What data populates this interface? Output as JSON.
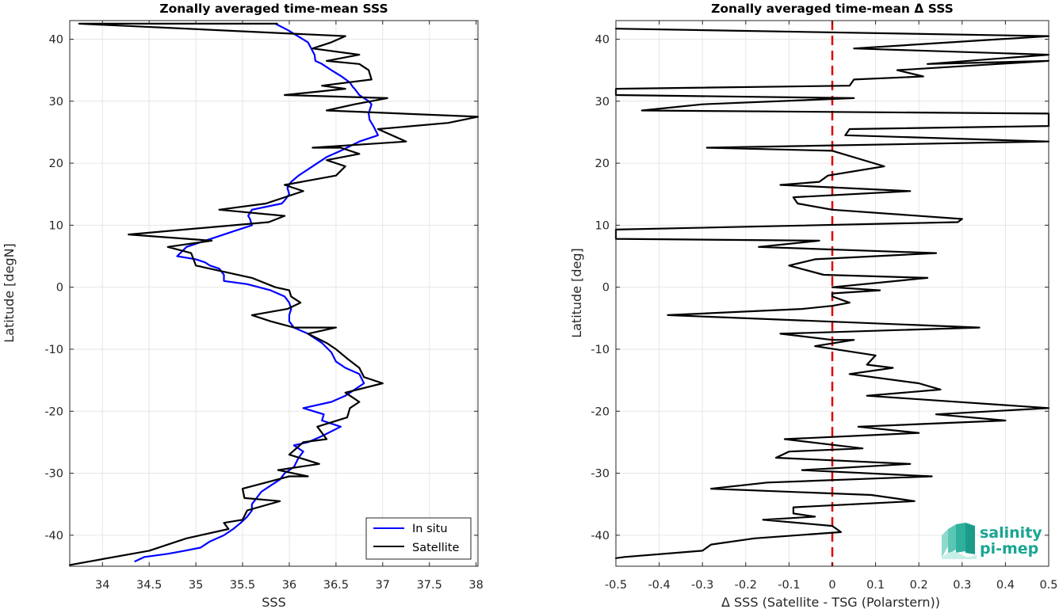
{
  "chart_data": [
    {
      "type": "line",
      "title": "Zonally averaged time-mean SSS",
      "xlabel": "SSS",
      "ylabel": "Latitude [degN]",
      "xlim": [
        33.65,
        38.02
      ],
      "ylim": [
        -45,
        43
      ],
      "xticks": [
        34,
        34.5,
        35,
        35.5,
        36,
        36.5,
        37,
        37.5,
        38
      ],
      "xtick_labels": [
        "34",
        "34.5",
        "35",
        "35.5",
        "36",
        "36.5",
        "37",
        "37.5",
        "38"
      ],
      "yticks": [
        -40,
        -30,
        -20,
        -10,
        0,
        10,
        20,
        30,
        40
      ],
      "ytick_labels": [
        "-40",
        "-30",
        "-20",
        "-10",
        "0",
        "10",
        "20",
        "30",
        "40"
      ],
      "grid": true,
      "legend": "bottom-right",
      "series": [
        {
          "name": "In situ",
          "color": "#0000ff",
          "points": [
            [
              35.85,
              42.5
            ],
            [
              35.98,
              41.5
            ],
            [
              36.2,
              39.5
            ],
            [
              36.27,
              37.5
            ],
            [
              36.28,
              36.5
            ],
            [
              36.35,
              36.0
            ],
            [
              36.45,
              35.0
            ],
            [
              36.56,
              34.0
            ],
            [
              36.65,
              33.0
            ],
            [
              36.68,
              32.3
            ],
            [
              36.7,
              32.0
            ],
            [
              36.75,
              31.0
            ],
            [
              36.85,
              30.0
            ],
            [
              36.88,
              29.5
            ],
            [
              36.85,
              28.0
            ],
            [
              36.86,
              27.0
            ],
            [
              36.9,
              26.0
            ],
            [
              36.95,
              24.5
            ],
            [
              36.75,
              23.5
            ],
            [
              36.55,
              22.0
            ],
            [
              36.4,
              21.0
            ],
            [
              36.3,
              20.0
            ],
            [
              36.2,
              19.0
            ],
            [
              36.1,
              18.0
            ],
            [
              36.02,
              17.0
            ],
            [
              35.98,
              16.0
            ],
            [
              36.0,
              15.0
            ],
            [
              35.95,
              14.0
            ],
            [
              35.92,
              13.5
            ],
            [
              35.6,
              12.5
            ],
            [
              35.58,
              12.0
            ],
            [
              35.56,
              11.5
            ],
            [
              35.58,
              11.0
            ],
            [
              35.6,
              10.0
            ],
            [
              35.4,
              9.0
            ],
            [
              35.1,
              7.5
            ],
            [
              34.9,
              6.5
            ],
            [
              34.8,
              5.0
            ],
            [
              35.0,
              4.5
            ],
            [
              35.1,
              4.0
            ],
            [
              35.15,
              3.5
            ],
            [
              35.25,
              3.0
            ],
            [
              35.3,
              2.0
            ],
            [
              35.3,
              1.0
            ],
            [
              35.55,
              0.5
            ],
            [
              35.8,
              -0.5
            ],
            [
              35.95,
              -1.5
            ],
            [
              36.0,
              -2.5
            ],
            [
              36.02,
              -3.5
            ],
            [
              36.0,
              -4.5
            ],
            [
              36.0,
              -5.5
            ],
            [
              36.05,
              -6.5
            ],
            [
              36.2,
              -7.5
            ],
            [
              36.35,
              -9.0
            ],
            [
              36.45,
              -10.5
            ],
            [
              36.5,
              -12.0
            ],
            [
              36.6,
              -13.0
            ],
            [
              36.75,
              -14.0
            ],
            [
              36.8,
              -15.5
            ],
            [
              36.7,
              -16.5
            ],
            [
              36.6,
              -17.5
            ],
            [
              36.45,
              -18.5
            ],
            [
              36.15,
              -19.5
            ],
            [
              36.37,
              -20.5
            ],
            [
              36.35,
              -21.5
            ],
            [
              36.55,
              -22.5
            ],
            [
              36.35,
              -24.0
            ],
            [
              36.2,
              -25.0
            ],
            [
              36.05,
              -25.5
            ],
            [
              36.15,
              -26.5
            ],
            [
              36.1,
              -27.5
            ],
            [
              36.05,
              -29.0
            ],
            [
              35.95,
              -30.0
            ],
            [
              35.9,
              -31.0
            ],
            [
              35.8,
              -32.0
            ],
            [
              35.7,
              -33.0
            ],
            [
              35.65,
              -34.0
            ],
            [
              35.6,
              -35.0
            ],
            [
              35.6,
              -36.0
            ],
            [
              35.55,
              -37.0
            ],
            [
              35.48,
              -38.0
            ],
            [
              35.4,
              -39.0
            ],
            [
              35.3,
              -40.0
            ],
            [
              35.15,
              -41.0
            ],
            [
              35.05,
              -42.0
            ],
            [
              34.88,
              -42.5
            ],
            [
              34.7,
              -43.0
            ],
            [
              34.45,
              -43.5
            ],
            [
              34.35,
              -44.2
            ]
          ]
        },
        {
          "name": "Satellite",
          "color": "#000000",
          "points": [
            [
              35.87,
              42.5
            ],
            [
              33.75,
              42.5
            ],
            [
              36.6,
              40.5
            ],
            [
              36.45,
              39.5
            ],
            [
              36.25,
              38.5
            ],
            [
              36.75,
              37.5
            ],
            [
              36.4,
              36.5
            ],
            [
              36.75,
              36.0
            ],
            [
              36.85,
              35.0
            ],
            [
              36.88,
              33.5
            ],
            [
              36.35,
              32.5
            ],
            [
              36.6,
              32.0
            ],
            [
              35.95,
              31.0
            ],
            [
              37.05,
              30.5
            ],
            [
              36.7,
              29.5
            ],
            [
              36.4,
              28.5
            ],
            [
              38.02,
              27.5
            ],
            [
              37.7,
              26.5
            ],
            [
              36.95,
              25.5
            ],
            [
              37.25,
              23.5
            ],
            [
              36.25,
              22.5
            ],
            [
              36.55,
              22.5
            ],
            [
              36.75,
              21.5
            ],
            [
              36.4,
              20.5
            ],
            [
              36.6,
              19.5
            ],
            [
              36.5,
              18.0
            ],
            [
              35.95,
              16.5
            ],
            [
              36.15,
              15.5
            ],
            [
              35.75,
              13.5
            ],
            [
              35.25,
              12.5
            ],
            [
              35.95,
              11.5
            ],
            [
              35.78,
              10.5
            ],
            [
              34.28,
              8.5
            ],
            [
              35.17,
              7.5
            ],
            [
              34.7,
              6.5
            ],
            [
              34.95,
              5.5
            ],
            [
              35.0,
              3.5
            ],
            [
              35.6,
              1.5
            ],
            [
              35.85,
              0.0
            ],
            [
              36.0,
              -0.5
            ],
            [
              36.02,
              -1.5
            ],
            [
              36.12,
              -2.5
            ],
            [
              35.98,
              -3.5
            ],
            [
              35.6,
              -4.5
            ],
            [
              35.8,
              -5.5
            ],
            [
              36.05,
              -6.5
            ],
            [
              36.5,
              -6.5
            ],
            [
              36.2,
              -7.5
            ],
            [
              36.4,
              -9.0
            ],
            [
              36.5,
              -10.0
            ],
            [
              36.62,
              -11.5
            ],
            [
              36.75,
              -13.0
            ],
            [
              36.8,
              -14.5
            ],
            [
              37.0,
              -15.5
            ],
            [
              36.6,
              -17.0
            ],
            [
              36.75,
              -18.5
            ],
            [
              36.65,
              -19.5
            ],
            [
              36.62,
              -21.0
            ],
            [
              36.3,
              -22.5
            ],
            [
              36.4,
              -24.5
            ],
            [
              36.15,
              -25.0
            ],
            [
              36.0,
              -27.0
            ],
            [
              36.32,
              -28.5
            ],
            [
              35.88,
              -29.5
            ],
            [
              36.2,
              -30.5
            ],
            [
              36.0,
              -30.5
            ],
            [
              35.75,
              -31.5
            ],
            [
              35.5,
              -32.5
            ],
            [
              35.52,
              -34.0
            ],
            [
              35.9,
              -34.5
            ],
            [
              35.55,
              -36.0
            ],
            [
              35.5,
              -37.5
            ],
            [
              35.3,
              -38.0
            ],
            [
              35.35,
              -39.0
            ],
            [
              34.9,
              -40.5
            ],
            [
              34.8,
              -41.0
            ],
            [
              34.5,
              -42.5
            ],
            [
              33.65,
              -44.8
            ]
          ]
        }
      ]
    },
    {
      "type": "line",
      "title": "Zonally averaged time-mean Δ SSS",
      "xlabel": "Δ SSS (Satellite - TSG (Polarstern))",
      "ylabel": "Latitude [deg]",
      "xlim": [
        -0.5,
        0.5
      ],
      "ylim": [
        -45,
        43
      ],
      "xticks": [
        -0.5,
        -0.4,
        -0.3,
        -0.2,
        -0.1,
        0,
        0.1,
        0.2,
        0.3,
        0.4,
        0.5
      ],
      "xtick_labels": [
        "-0.5",
        "-0.4",
        "-0.3",
        "-0.2",
        "-0.1",
        "0",
        "0.1",
        "0.2",
        "0.3",
        "0.4",
        "0.5"
      ],
      "yticks": [
        -40,
        -30,
        -20,
        -10,
        0,
        10,
        20,
        30,
        40
      ],
      "ytick_labels": [
        "-40",
        "-30",
        "-20",
        "-10",
        "0",
        "10",
        "20",
        "30",
        "40"
      ],
      "grid": true,
      "reference_line": {
        "x": 0,
        "color": "#e00000",
        "style": "dashed"
      },
      "series": [
        {
          "color": "#000000",
          "points": [
            [
              -0.5,
              41.7
            ],
            [
              0.5,
              40.5
            ],
            [
              0.05,
              38.5
            ],
            [
              0.5,
              37.5
            ],
            [
              0.22,
              36.0
            ],
            [
              0.5,
              36.5
            ],
            [
              0.15,
              35.0
            ],
            [
              0.21,
              34.0
            ],
            [
              0.05,
              33.5
            ],
            [
              0.04,
              32.5
            ],
            [
              -0.5,
              32.0
            ],
            [
              -0.5,
              31.0
            ],
            [
              0.05,
              30.5
            ],
            [
              -0.3,
              29.5
            ],
            [
              -0.44,
              28.5
            ],
            [
              0.5,
              28.0
            ],
            [
              0.5,
              26.0
            ],
            [
              0.04,
              25.5
            ],
            [
              0.03,
              24.5
            ],
            [
              0.5,
              23.5
            ],
            [
              -0.29,
              22.5
            ],
            [
              0.0,
              22.0
            ],
            [
              0.12,
              19.5
            ],
            [
              -0.01,
              18.0
            ],
            [
              -0.03,
              17.0
            ],
            [
              -0.12,
              16.5
            ],
            [
              0.18,
              15.5
            ],
            [
              -0.09,
              14.5
            ],
            [
              -0.08,
              13.5
            ],
            [
              0.0,
              12.5
            ],
            [
              0.3,
              11.0
            ],
            [
              0.29,
              10.5
            ],
            [
              -0.5,
              9.3
            ],
            [
              -0.5,
              7.8
            ],
            [
              -0.03,
              7.5
            ],
            [
              -0.17,
              6.5
            ],
            [
              0.24,
              5.5
            ],
            [
              -0.04,
              4.5
            ],
            [
              -0.1,
              3.5
            ],
            [
              -0.02,
              2.0
            ],
            [
              0.22,
              1.5
            ],
            [
              0.0,
              0.0
            ],
            [
              0.11,
              -0.5
            ],
            [
              0.0,
              -1.0
            ],
            [
              0.0,
              -1.5
            ],
            [
              0.04,
              -2.5
            ],
            [
              0.0,
              -3.0
            ],
            [
              -0.07,
              -3.5
            ],
            [
              -0.38,
              -4.5
            ],
            [
              0.34,
              -6.5
            ],
            [
              -0.12,
              -7.5
            ],
            [
              0.0,
              -8.5
            ],
            [
              0.05,
              -8.5
            ],
            [
              -0.04,
              -9.5
            ],
            [
              0.1,
              -11.0
            ],
            [
              0.08,
              -12.5
            ],
            [
              0.14,
              -13.0
            ],
            [
              0.04,
              -14.0
            ],
            [
              0.2,
              -15.5
            ],
            [
              0.25,
              -16.5
            ],
            [
              0.08,
              -17.5
            ],
            [
              0.5,
              -19.5
            ],
            [
              0.24,
              -20.5
            ],
            [
              0.4,
              -21.5
            ],
            [
              0.06,
              -22.5
            ],
            [
              0.2,
              -23.5
            ],
            [
              -0.11,
              -24.5
            ],
            [
              0.07,
              -26.0
            ],
            [
              -0.1,
              -26.5
            ],
            [
              -0.13,
              -27.5
            ],
            [
              0.18,
              -28.5
            ],
            [
              -0.07,
              -29.5
            ],
            [
              0.23,
              -30.5
            ],
            [
              -0.15,
              -31.5
            ],
            [
              -0.28,
              -32.5
            ],
            [
              0.09,
              -33.5
            ],
            [
              0.19,
              -34.5
            ],
            [
              -0.09,
              -35.5
            ],
            [
              -0.09,
              -36.5
            ],
            [
              -0.04,
              -37.0
            ],
            [
              -0.16,
              -37.5
            ],
            [
              0.0,
              -38.5
            ],
            [
              0.02,
              -39.5
            ],
            [
              -0.18,
              -40.5
            ],
            [
              -0.28,
              -41.5
            ],
            [
              -0.3,
              -42.5
            ],
            [
              -0.48,
              -43.5
            ],
            [
              -0.5,
              -43.7
            ]
          ]
        }
      ]
    }
  ],
  "logo": {
    "line1": "salinity",
    "line2": "pi-mep",
    "color": "#1aa593"
  }
}
